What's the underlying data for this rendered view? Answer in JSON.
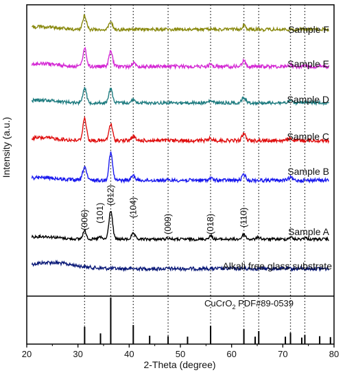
{
  "chart_data": {
    "type": "line",
    "xlabel": "2-Theta (degree)",
    "ylabel": "Intensity (a.u.)",
    "xlim": [
      20,
      80
    ],
    "x_ticks": [
      20,
      30,
      40,
      50,
      60,
      70,
      80
    ],
    "reference_label": "CuCrO",
    "reference_label_sub": "2",
    "reference_label_rest": " PDF#89-0539",
    "dotted_lines_2theta": [
      31.3,
      36.4,
      40.8,
      47.6,
      55.9,
      62.4,
      65.3,
      71.5,
      74.3
    ],
    "series": [
      {
        "name": "Alkali free glass substrate",
        "color": "#0b1a78",
        "kind": "glass"
      },
      {
        "name": "Sample A",
        "color": "#000000",
        "kind": "A"
      },
      {
        "name": "Sample B",
        "color": "#1a1aee",
        "kind": "B"
      },
      {
        "name": "Sample C",
        "color": "#e01010",
        "kind": "C"
      },
      {
        "name": "Sample D",
        "color": "#1f7c80",
        "kind": "D"
      },
      {
        "name": "Sample E",
        "color": "#d428d4",
        "kind": "E"
      },
      {
        "name": "Sample F",
        "color": "#8a8a10",
        "kind": "F"
      }
    ],
    "peak_labels": [
      {
        "text": "(006)",
        "x": 31.3
      },
      {
        "text": "(101)",
        "x": 34.3
      },
      {
        "text": "(012)",
        "x": 36.4
      },
      {
        "text": "(104)",
        "x": 40.8
      },
      {
        "text": "(009)",
        "x": 47.6
      },
      {
        "text": "(018)",
        "x": 55.9
      },
      {
        "text": "(110)",
        "x": 62.4
      }
    ],
    "reference_peaks": [
      {
        "x": 31.3,
        "i": 0.37
      },
      {
        "x": 34.4,
        "i": 0.23
      },
      {
        "x": 36.4,
        "i": 1.0
      },
      {
        "x": 40.8,
        "i": 0.41
      },
      {
        "x": 44.0,
        "i": 0.18
      },
      {
        "x": 47.6,
        "i": 0.17
      },
      {
        "x": 51.4,
        "i": 0.16
      },
      {
        "x": 55.9,
        "i": 0.39
      },
      {
        "x": 62.4,
        "i": 0.32
      },
      {
        "x": 64.6,
        "i": 0.16
      },
      {
        "x": 65.3,
        "i": 0.28
      },
      {
        "x": 70.5,
        "i": 0.16
      },
      {
        "x": 71.5,
        "i": 0.24
      },
      {
        "x": 73.7,
        "i": 0.14
      },
      {
        "x": 74.3,
        "i": 0.2
      },
      {
        "x": 77.2,
        "i": 0.17
      },
      {
        "x": 79.3,
        "i": 0.15
      }
    ]
  }
}
